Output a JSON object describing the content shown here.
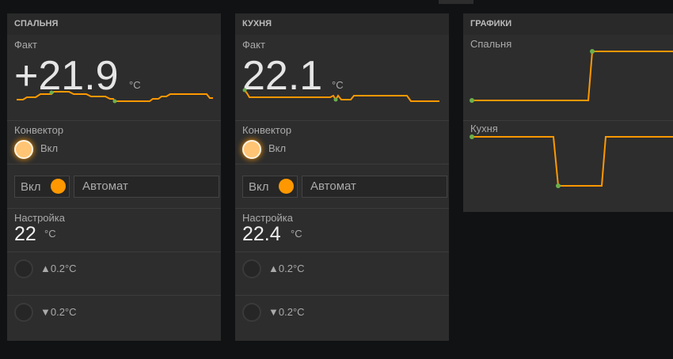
{
  "colors": {
    "accent": "#ff9800",
    "point": "#6ab04c",
    "background": "#111213",
    "card": "#2d2d2d"
  },
  "cards": [
    {
      "title": "СПАЛЬНЯ",
      "fact_label": "Факт",
      "fact_value": "+21.9",
      "unit": "°C",
      "convector_label": "Конвектор",
      "convector_state": "Вкл",
      "switch_label": "Вкл",
      "switch_on": true,
      "mode_value": "Автомат",
      "setpoint_label": "Настройка",
      "setpoint_value": "22",
      "up_label": "▲0.2°C",
      "down_label": "▼0.2°C"
    },
    {
      "title": "КУХНЯ",
      "fact_label": "Факт",
      "fact_value": "22.1",
      "unit": "°C",
      "convector_label": "Конвектор",
      "convector_state": "Вкл",
      "switch_label": "Вкл",
      "switch_on": true,
      "mode_value": "Автомат",
      "setpoint_label": "Настройка",
      "setpoint_value": "22.4",
      "up_label": "▲0.2°C",
      "down_label": "▼0.2°C"
    }
  ],
  "charts": {
    "title": "ГРАФИКИ",
    "items": [
      {
        "label": "Спальня"
      },
      {
        "label": "Кухня"
      }
    ]
  }
}
